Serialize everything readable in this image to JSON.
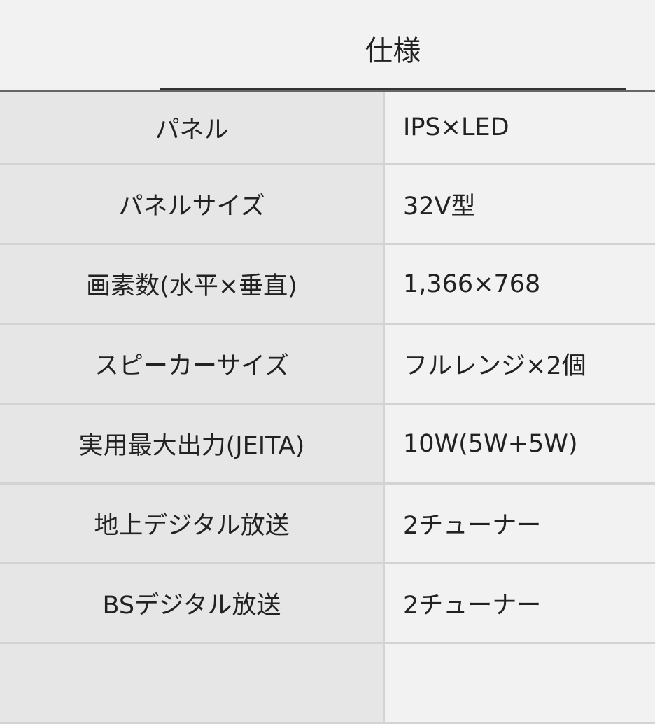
{
  "tab": {
    "label": "仕様"
  },
  "specs": [
    {
      "label": "パネル",
      "value": "IPS×LED"
    },
    {
      "label": "パネルサイズ",
      "value": "32V型"
    },
    {
      "label": "画素数(水平×垂直)",
      "value": "1,366×768"
    },
    {
      "label": "スピーカーサイズ",
      "value": "フルレンジ×2個"
    },
    {
      "label": "実用最大出力(JEITA)",
      "value": "10W(5W+5W)"
    },
    {
      "label": "地上デジタル放送",
      "value": "2チューナー"
    },
    {
      "label": "BSデジタル放送",
      "value": "2チューナー"
    },
    {
      "label": "",
      "value": ""
    }
  ]
}
